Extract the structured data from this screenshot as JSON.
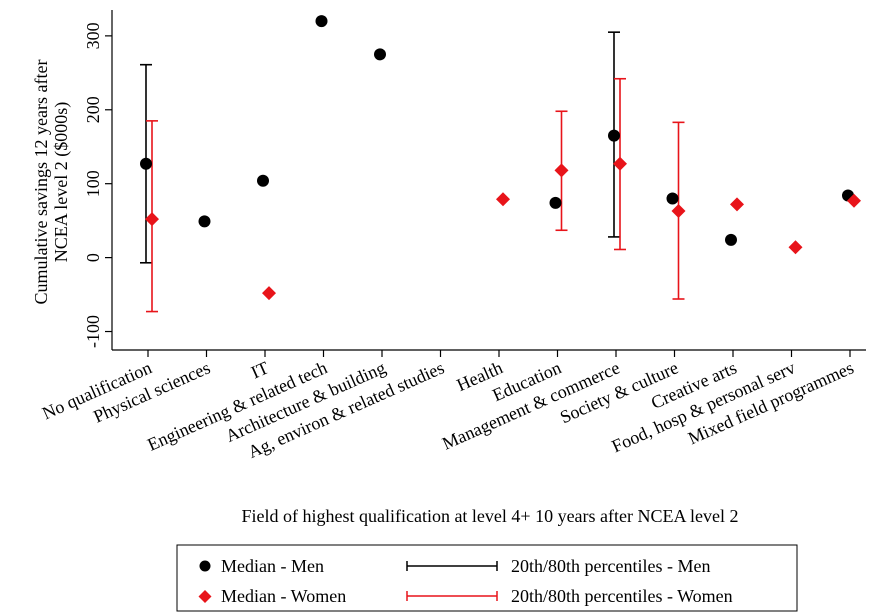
{
  "chart_data": {
    "type": "scatter",
    "ylabel_line1": "Cumulative savings 12 years after",
    "ylabel_line2": "NCEA level 2 ($000s)",
    "xlabel": "Field of highest qualification at level 4+ 10 years after NCEA level 2",
    "ylim": [
      -125,
      335
    ],
    "yticks": [
      -100,
      0,
      100,
      200,
      300
    ],
    "grid": false,
    "legend_position": "bottom",
    "categories": [
      "No qualification",
      "Physical sciences",
      "IT",
      "Engineering & related tech",
      "Architecture & building",
      "Ag, environ & related studies",
      "Health",
      "Education",
      "Management & commerce",
      "Society & culture",
      "Creative arts",
      "Food, hosp & personal serv",
      "Mixed field programmes"
    ],
    "series": [
      {
        "name": "Median - Men",
        "color": "#000000",
        "marker": "circle",
        "values": [
          127,
          49,
          104,
          320,
          275,
          null,
          null,
          74,
          165,
          80,
          24,
          null,
          84
        ]
      },
      {
        "name": "Median - Women",
        "color": "#e8141a",
        "marker": "diamond",
        "values": [
          52,
          null,
          -48,
          null,
          null,
          null,
          79,
          118,
          127,
          63,
          72,
          14,
          77
        ]
      }
    ],
    "error_bars": [
      {
        "name": "20th/80th percentiles - Men",
        "color": "#000000",
        "ranges": [
          [
            -7,
            261
          ],
          null,
          null,
          null,
          null,
          null,
          null,
          null,
          [
            28,
            305
          ],
          null,
          null,
          null,
          null
        ]
      },
      {
        "name": "20th/80th percentiles - Women",
        "color": "#e8141a",
        "ranges": [
          [
            -73,
            185
          ],
          null,
          null,
          null,
          null,
          null,
          null,
          [
            37,
            198
          ],
          [
            11,
            242
          ],
          [
            -56,
            183
          ],
          null,
          null,
          null
        ]
      }
    ]
  }
}
